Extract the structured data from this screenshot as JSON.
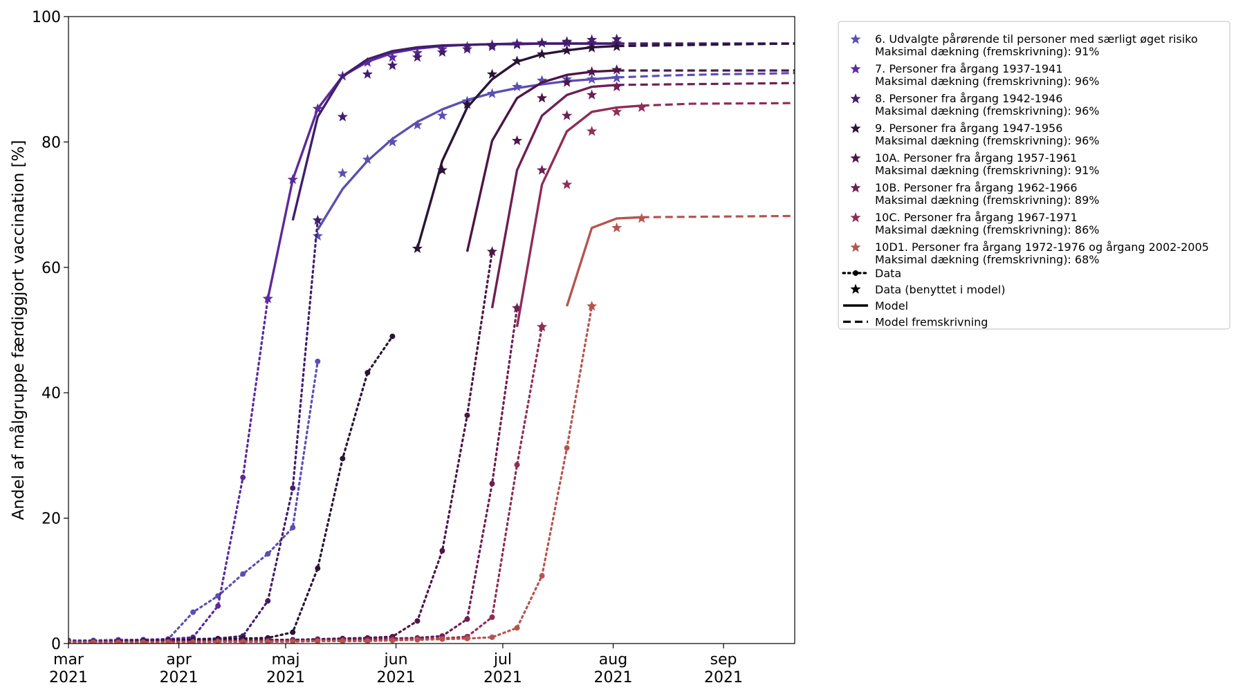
{
  "chart_data": {
    "type": "line",
    "ylabel": "Andel af målgruppe færdiggjort vaccination [%]",
    "xlabel": "",
    "xlim": [
      "2021-03-01",
      "2021-09-21"
    ],
    "ylim": [
      0,
      100
    ],
    "x_ticks": [
      {
        "date": "2021-03-01",
        "month": "mar",
        "year": "2021"
      },
      {
        "date": "2021-04-01",
        "month": "apr",
        "year": "2021"
      },
      {
        "date": "2021-05-01",
        "month": "maj",
        "year": "2021"
      },
      {
        "date": "2021-06-01",
        "month": "jun",
        "year": "2021"
      },
      {
        "date": "2021-07-01",
        "month": "jul",
        "year": "2021"
      },
      {
        "date": "2021-08-01",
        "month": "aug",
        "year": "2021"
      },
      {
        "date": "2021-09-01",
        "month": "sep",
        "year": "2021"
      }
    ],
    "y_ticks": [
      "0",
      "20",
      "40",
      "60",
      "80",
      "100"
    ],
    "grid": false,
    "legend_position": "outside-right-top",
    "series": [
      {
        "name": "6. Udvalgte pårørende til personer med særligt øget risiko",
        "coverage_label": "Maksimal dækning (fremskrivning): 91%",
        "color": "#5a4fb3",
        "data_x": [
          "2021-03-01",
          "2021-03-08",
          "2021-03-15",
          "2021-03-22",
          "2021-03-29",
          "2021-04-05",
          "2021-04-12",
          "2021-04-19",
          "2021-04-26",
          "2021-05-03",
          "2021-05-10"
        ],
        "data_y": [
          0.5,
          0.5,
          0.6,
          0.6,
          0.7,
          5,
          7.6,
          11.1,
          14.3,
          18.5,
          45
        ],
        "star_x": [
          "2021-05-10",
          "2021-05-17",
          "2021-05-24",
          "2021-05-31",
          "2021-06-07",
          "2021-06-14",
          "2021-06-21",
          "2021-06-28",
          "2021-07-05",
          "2021-07-12",
          "2021-07-19",
          "2021-07-26",
          "2021-08-02"
        ],
        "star_y": [
          65,
          75,
          77.2,
          80,
          82.7,
          84.2,
          86.5,
          87.7,
          88.8,
          89.8,
          90,
          90,
          90.2
        ],
        "model_x": [
          "2021-05-10",
          "2021-05-17",
          "2021-05-24",
          "2021-05-31",
          "2021-06-07",
          "2021-06-14",
          "2021-06-21",
          "2021-06-28",
          "2021-07-05",
          "2021-07-12",
          "2021-07-19",
          "2021-07-26",
          "2021-08-02"
        ],
        "model_y": [
          66,
          72.5,
          77,
          80.5,
          83.2,
          85.2,
          86.7,
          87.8,
          88.6,
          89.2,
          89.7,
          90,
          90.3
        ],
        "proj_x": [
          "2021-08-02",
          "2021-08-16",
          "2021-08-30",
          "2021-09-13",
          "2021-09-21"
        ],
        "proj_y": [
          90.3,
          90.6,
          90.8,
          90.9,
          91
        ]
      },
      {
        "name": "7. Personer fra årgang 1937-1941",
        "coverage_label": "Maksimal dækning (fremskrivning): 96%",
        "color": "#5b2a9c",
        "data_x": [
          "2021-03-01",
          "2021-03-08",
          "2021-03-15",
          "2021-03-22",
          "2021-03-29",
          "2021-04-05",
          "2021-04-12",
          "2021-04-19",
          "2021-04-26"
        ],
        "data_y": [
          0.3,
          0.4,
          0.5,
          0.6,
          0.7,
          1.0,
          6,
          26.5,
          55
        ],
        "star_x": [
          "2021-04-26",
          "2021-05-03",
          "2021-05-10",
          "2021-05-17",
          "2021-05-24",
          "2021-05-31",
          "2021-06-07",
          "2021-06-14",
          "2021-06-21",
          "2021-06-28",
          "2021-07-05",
          "2021-07-12",
          "2021-07-19",
          "2021-07-26",
          "2021-08-02"
        ],
        "star_y": [
          55,
          74,
          85.3,
          90.5,
          92.7,
          93.5,
          94.2,
          94.8,
          95.2,
          95.5,
          95.7,
          95.8,
          95.8,
          95.8,
          95.8
        ],
        "model_x": [
          "2021-04-26",
          "2021-05-03",
          "2021-05-10",
          "2021-05-17",
          "2021-05-24",
          "2021-05-31",
          "2021-06-07",
          "2021-06-14",
          "2021-06-21",
          "2021-06-28",
          "2021-07-05",
          "2021-07-12",
          "2021-07-19",
          "2021-07-26",
          "2021-08-02"
        ],
        "model_y": [
          55,
          74,
          85.3,
          90.5,
          92.8,
          94.2,
          94.9,
          95.3,
          95.5,
          95.6,
          95.7,
          95.7,
          95.7,
          95.7,
          95.7
        ],
        "proj_x": [
          "2021-08-02",
          "2021-09-21"
        ],
        "proj_y": [
          95.7,
          95.7
        ]
      },
      {
        "name": "8. Personer fra årgang 1942-1946",
        "coverage_label": "Maksimal dækning (fremskrivning): 96%",
        "color": "#421e6b",
        "data_x": [
          "2021-03-01",
          "2021-03-08",
          "2021-03-15",
          "2021-03-22",
          "2021-03-29",
          "2021-04-05",
          "2021-04-12",
          "2021-04-19",
          "2021-04-26",
          "2021-05-03",
          "2021-05-10"
        ],
        "data_y": [
          0.3,
          0.3,
          0.4,
          0.5,
          0.6,
          0.7,
          0.8,
          1.2,
          6.8,
          24.8,
          67.5
        ],
        "star_x": [
          "2021-05-10",
          "2021-05-17",
          "2021-05-24",
          "2021-05-31",
          "2021-06-07",
          "2021-06-14",
          "2021-06-21",
          "2021-06-28",
          "2021-07-05",
          "2021-07-12",
          "2021-07-19",
          "2021-07-26",
          "2021-08-02"
        ],
        "star_y": [
          67.5,
          84,
          90.8,
          92.2,
          93.5,
          94.3,
          94.8,
          95.2,
          95.5,
          95.8,
          96.0,
          96.3,
          96.4
        ],
        "model_x": [
          "2021-05-03",
          "2021-05-10",
          "2021-05-17",
          "2021-05-24",
          "2021-05-31",
          "2021-06-07",
          "2021-06-14",
          "2021-06-21",
          "2021-06-28",
          "2021-07-05",
          "2021-07-12",
          "2021-07-19",
          "2021-07-26",
          "2021-08-02"
        ],
        "model_y": [
          67.5,
          84,
          90.5,
          93.2,
          94.5,
          95.1,
          95.4,
          95.5,
          95.6,
          95.6,
          95.7,
          95.7,
          95.7,
          95.7
        ],
        "proj_x": [
          "2021-08-02",
          "2021-09-21"
        ],
        "proj_y": [
          95.7,
          95.7
        ]
      },
      {
        "name": "9. Personer fra årgang 1947-1956",
        "coverage_label": "Maksimal dækning (fremskrivning): 96%",
        "color": "#2a1436",
        "data_x": [
          "2021-03-01",
          "2021-03-08",
          "2021-03-15",
          "2021-03-22",
          "2021-03-29",
          "2021-04-05",
          "2021-04-12",
          "2021-04-19",
          "2021-04-26",
          "2021-05-03",
          "2021-05-10",
          "2021-05-17",
          "2021-05-24",
          "2021-05-31"
        ],
        "data_y": [
          0.3,
          0.3,
          0.3,
          0.4,
          0.5,
          0.6,
          0.7,
          0.8,
          0.9,
          1.8,
          12,
          29.5,
          43.2,
          49
        ],
        "star_x": [
          "2021-06-07",
          "2021-06-14",
          "2021-06-21",
          "2021-06-28",
          "2021-07-05",
          "2021-07-12",
          "2021-07-19",
          "2021-07-26",
          "2021-08-02"
        ],
        "star_y": [
          63,
          75.5,
          86,
          90.8,
          92.9,
          94,
          94.6,
          95,
          95.2
        ],
        "model_x": [
          "2021-06-07",
          "2021-06-14",
          "2021-06-21",
          "2021-06-28",
          "2021-07-05",
          "2021-07-12",
          "2021-07-19",
          "2021-07-26",
          "2021-08-02"
        ],
        "model_y": [
          63,
          77,
          85.5,
          90,
          92.8,
          94,
          94.6,
          95.1,
          95.3
        ],
        "proj_x": [
          "2021-08-02",
          "2021-09-21"
        ],
        "proj_y": [
          95.3,
          95.7
        ]
      },
      {
        "name": "10A. Personer fra årgang 1957-1961",
        "coverage_label": "Maksimal dækning (fremskrivning): 91%",
        "color": "#4d1647",
        "data_x": [
          "2021-03-01",
          "2021-03-08",
          "2021-03-15",
          "2021-03-22",
          "2021-03-29",
          "2021-04-05",
          "2021-04-12",
          "2021-04-19",
          "2021-04-26",
          "2021-05-03",
          "2021-05-10",
          "2021-05-17",
          "2021-05-24",
          "2021-05-31",
          "2021-06-07",
          "2021-06-14",
          "2021-06-21",
          "2021-06-28"
        ],
        "data_y": [
          0.3,
          0.3,
          0.3,
          0.3,
          0.4,
          0.4,
          0.5,
          0.5,
          0.6,
          0.6,
          0.7,
          0.8,
          0.9,
          1.1,
          3.6,
          14.8,
          36.4,
          62.5
        ],
        "star_x": [
          "2021-06-28",
          "2021-07-05",
          "2021-07-12",
          "2021-07-19",
          "2021-07-26",
          "2021-08-02"
        ],
        "star_y": [
          62.5,
          80.2,
          87,
          89.5,
          91.2,
          91.5
        ],
        "model_x": [
          "2021-06-21",
          "2021-06-28",
          "2021-07-05",
          "2021-07-12",
          "2021-07-19",
          "2021-07-26",
          "2021-08-02"
        ],
        "model_y": [
          62.5,
          80.2,
          87,
          89.5,
          90.7,
          91.2,
          91.4
        ],
        "proj_x": [
          "2021-08-02",
          "2021-09-21"
        ],
        "proj_y": [
          91.4,
          91.4
        ]
      },
      {
        "name": "10B. Personer fra årgang 1962-1966",
        "coverage_label": "Maksimal dækning (fremskrivning): 89%",
        "color": "#6e1f54",
        "data_x": [
          "2021-03-01",
          "2021-03-08",
          "2021-03-15",
          "2021-03-22",
          "2021-03-29",
          "2021-04-05",
          "2021-04-12",
          "2021-04-19",
          "2021-04-26",
          "2021-05-03",
          "2021-05-10",
          "2021-05-17",
          "2021-05-24",
          "2021-05-31",
          "2021-06-07",
          "2021-06-14",
          "2021-06-21",
          "2021-06-28",
          "2021-07-05"
        ],
        "data_y": [
          0.2,
          0.2,
          0.2,
          0.3,
          0.3,
          0.3,
          0.4,
          0.4,
          0.5,
          0.5,
          0.6,
          0.6,
          0.7,
          0.8,
          0.9,
          1.2,
          3.9,
          25.5,
          53.5
        ],
        "star_x": [
          "2021-07-05",
          "2021-07-12",
          "2021-07-19",
          "2021-07-26",
          "2021-08-02"
        ],
        "star_y": [
          53.5,
          75.5,
          84.2,
          87.5,
          88.8
        ],
        "model_x": [
          "2021-06-28",
          "2021-07-05",
          "2021-07-12",
          "2021-07-19",
          "2021-07-26",
          "2021-08-02"
        ],
        "model_y": [
          53.5,
          75.5,
          84.2,
          87.5,
          88.8,
          89.1
        ],
        "proj_x": [
          "2021-08-02",
          "2021-09-21"
        ],
        "proj_y": [
          89.1,
          89.4
        ]
      },
      {
        "name": "10C. Personer fra årgang 1967-1971",
        "coverage_label": "Maksimal dækning (fremskrivning): 86%",
        "color": "#8f2d56",
        "data_x": [
          "2021-03-01",
          "2021-03-08",
          "2021-03-15",
          "2021-03-22",
          "2021-03-29",
          "2021-04-05",
          "2021-04-12",
          "2021-04-19",
          "2021-04-26",
          "2021-05-03",
          "2021-05-10",
          "2021-05-17",
          "2021-05-24",
          "2021-05-31",
          "2021-06-07",
          "2021-06-14",
          "2021-06-21",
          "2021-06-28",
          "2021-07-05",
          "2021-07-12"
        ],
        "data_y": [
          0.2,
          0.2,
          0.2,
          0.2,
          0.2,
          0.3,
          0.3,
          0.3,
          0.3,
          0.4,
          0.4,
          0.5,
          0.5,
          0.6,
          0.7,
          0.8,
          1.1,
          4.2,
          28.5,
          50.5
        ],
        "star_x": [
          "2021-07-12",
          "2021-07-19",
          "2021-07-26",
          "2021-08-02",
          "2021-08-09"
        ],
        "star_y": [
          50.5,
          73.2,
          81.7,
          84.8,
          85.5
        ],
        "model_x": [
          "2021-07-05",
          "2021-07-12",
          "2021-07-19",
          "2021-07-26",
          "2021-08-02",
          "2021-08-09"
        ],
        "model_y": [
          50.5,
          73.2,
          81.7,
          84.8,
          85.5,
          85.8
        ],
        "proj_x": [
          "2021-08-09",
          "2021-08-23",
          "2021-09-21"
        ],
        "proj_y": [
          85.8,
          86.1,
          86.2
        ]
      },
      {
        "name": "10D1. Personer fra årgang 1972-1976 og årgang 2002-2005",
        "coverage_label": "Maksimal dækning (fremskrivning): 68%",
        "color": "#b5544f",
        "data_x": [
          "2021-03-01",
          "2021-03-08",
          "2021-03-15",
          "2021-03-22",
          "2021-03-29",
          "2021-04-05",
          "2021-04-12",
          "2021-04-19",
          "2021-04-26",
          "2021-05-03",
          "2021-05-10",
          "2021-05-17",
          "2021-05-24",
          "2021-05-31",
          "2021-06-07",
          "2021-06-14",
          "2021-06-21",
          "2021-06-28",
          "2021-07-05",
          "2021-07-12",
          "2021-07-19",
          "2021-07-26"
        ],
        "data_y": [
          0.2,
          0.2,
          0.2,
          0.2,
          0.2,
          0.2,
          0.3,
          0.3,
          0.3,
          0.3,
          0.4,
          0.4,
          0.4,
          0.5,
          0.6,
          0.7,
          0.8,
          1.0,
          2.5,
          10.8,
          31.2,
          53.8
        ],
        "star_x": [
          "2021-07-26",
          "2021-08-02",
          "2021-08-09"
        ],
        "star_y": [
          53.8,
          66.3,
          67.8
        ],
        "model_x": [
          "2021-07-19",
          "2021-07-26",
          "2021-08-02",
          "2021-08-09"
        ],
        "model_y": [
          53.8,
          66.3,
          67.8,
          68.0
        ],
        "proj_x": [
          "2021-08-09",
          "2021-09-21"
        ],
        "proj_y": [
          68.0,
          68.2
        ]
      }
    ],
    "legend_extra": [
      {
        "label": "Data",
        "style": "dotted-with-dot"
      },
      {
        "label": "Data (benyttet i model)",
        "style": "star"
      },
      {
        "label": "Model",
        "style": "solid"
      },
      {
        "label": "Model fremskrivning",
        "style": "dashed"
      }
    ]
  }
}
